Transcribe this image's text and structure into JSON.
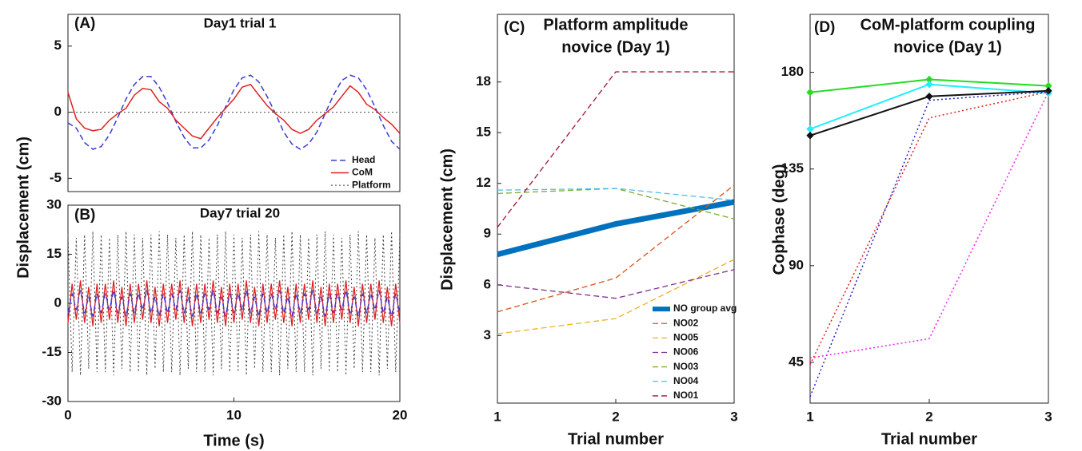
{
  "chart_data": [
    {
      "type": "line",
      "panel_label": "(A)",
      "title": [
        "Day1 trial 1"
      ],
      "ylabel": "Displacement (cm)",
      "x": [
        0,
        0.5,
        1,
        1.5,
        2,
        2.5,
        3,
        3.5,
        4,
        4.5,
        5,
        5.5,
        6,
        6.5,
        7,
        7.5,
        8,
        8.5,
        9,
        9.5,
        10,
        10.5,
        11,
        11.5,
        12,
        12.5,
        13,
        13.5,
        14,
        14.5,
        15,
        15.5,
        16,
        16.5,
        17,
        17.5,
        18,
        18.5,
        19,
        19.5,
        20
      ],
      "xlim": [
        0,
        20
      ],
      "ylim": [
        -6,
        7.4
      ],
      "yticks": [
        -5,
        0,
        5
      ],
      "legend": "lower right",
      "series": [
        {
          "name": "Head",
          "color": "#3b3bd6",
          "dash": "dashed",
          "width": 1.5,
          "values": [
            -0.8,
            -1.2,
            -2.3,
            -2.8,
            -2.6,
            -1.7,
            -0.4,
            1.0,
            2.1,
            2.7,
            2.7,
            1.9,
            0.7,
            -0.7,
            -1.9,
            -2.7,
            -2.7,
            -2.1,
            -1.0,
            0.4,
            1.7,
            2.6,
            2.8,
            2.3,
            1.2,
            -0.1,
            -1.5,
            -2.4,
            -2.8,
            -2.4,
            -1.5,
            -0.1,
            1.3,
            2.4,
            2.8,
            2.6,
            1.7,
            0.4,
            -1.0,
            -2.2,
            -2.8
          ]
        },
        {
          "name": "CoM",
          "color": "#e02020",
          "dash": "solid",
          "width": 1.5,
          "values": [
            1.5,
            -0.5,
            -1.2,
            -1.4,
            -1.3,
            -0.6,
            -0.1,
            0.3,
            1.3,
            1.8,
            1.7,
            0.8,
            0.3,
            -0.6,
            -1.2,
            -1.8,
            -2.0,
            -1.2,
            -0.4,
            0.3,
            1.0,
            1.9,
            2.1,
            1.3,
            0.5,
            -0.1,
            -0.6,
            -1.3,
            -1.6,
            -1.3,
            -0.6,
            -0.1,
            0.4,
            1.2,
            2.0,
            1.5,
            0.6,
            0.2,
            -0.4,
            -0.9,
            -1.6
          ]
        },
        {
          "name": "Platform",
          "color": "#444444",
          "dash": "dotted",
          "width": 1,
          "values": [
            0,
            0,
            0,
            0,
            0,
            0,
            0,
            0,
            0,
            0,
            0,
            0,
            0,
            0,
            0,
            0,
            0,
            0,
            0,
            0,
            0,
            0,
            0,
            0,
            0,
            0,
            0,
            0,
            0,
            0,
            0,
            0,
            0,
            0,
            0,
            0,
            0,
            0,
            0,
            0,
            0
          ]
        }
      ]
    },
    {
      "type": "line",
      "panel_label": "(B)",
      "title": [
        "Day7 trial 20"
      ],
      "xlabel": "Time (s)",
      "x": [
        0,
        0.25,
        0.5,
        0.75,
        1,
        1.25,
        1.5,
        1.75,
        2,
        2.25,
        2.5,
        2.75,
        3,
        3.25,
        3.5,
        3.75,
        4,
        4.25,
        4.5,
        4.75,
        5,
        5.25,
        5.5,
        5.75,
        6,
        6.25,
        6.5,
        6.75,
        7,
        7.25,
        7.5,
        7.75,
        8,
        8.25,
        8.5,
        8.75,
        9,
        9.25,
        9.5,
        9.75,
        10,
        10.25,
        10.5,
        10.75,
        11,
        11.25,
        11.5,
        11.75,
        12,
        12.25,
        12.5,
        12.75,
        13,
        13.25,
        13.5,
        13.75,
        14,
        14.25,
        14.5,
        14.75,
        15,
        15.25,
        15.5,
        15.75,
        16,
        16.25,
        16.5,
        16.75,
        17,
        17.25,
        17.5,
        17.75,
        18,
        18.25,
        18.5,
        18.75,
        19,
        19.25,
        19.5,
        19.75,
        20
      ],
      "xlim": [
        0,
        20
      ],
      "xticks": [
        0,
        10,
        20
      ],
      "ylim": [
        -30,
        30
      ],
      "yticks": [
        -30,
        -15,
        0,
        15,
        30
      ],
      "series": [
        {
          "color": "#444444",
          "dash": "dotted",
          "width": 1,
          "values": [
            21,
            -21,
            20,
            -22,
            21,
            -20,
            22,
            -21,
            21,
            -21,
            20,
            -22,
            21,
            -20,
            22,
            -21,
            21,
            -21,
            20,
            -22,
            21,
            -20,
            22,
            -21,
            21,
            -21,
            20,
            -22,
            21,
            -20,
            22,
            -21,
            21,
            -21,
            20,
            -22,
            21,
            -20,
            22,
            -21,
            21,
            -21,
            20,
            -22,
            21,
            -20,
            22,
            -21,
            21,
            -21,
            20,
            -22,
            21,
            -20,
            22,
            -21,
            21,
            -21,
            20,
            -22,
            21,
            -20,
            22,
            -21,
            21,
            -21,
            20,
            -22,
            21,
            -20,
            22,
            -21,
            21,
            -21,
            20,
            -22,
            21,
            -20,
            22,
            -21,
            21
          ]
        },
        {
          "color": "#e02020",
          "dash": "solid",
          "width": 1.3,
          "values": [
            -6,
            6,
            -5,
            7,
            -6,
            5,
            -7,
            6,
            -6,
            6,
            -5,
            7,
            -6,
            5,
            -7,
            6,
            -6,
            6,
            -5,
            7,
            -6,
            5,
            -7,
            6,
            -6,
            6,
            -5,
            7,
            -6,
            5,
            -7,
            6,
            -6,
            6,
            -5,
            7,
            -6,
            5,
            -7,
            6,
            -6,
            6,
            -5,
            7,
            -6,
            5,
            -7,
            6,
            -6,
            6,
            -5,
            7,
            -6,
            5,
            -7,
            6,
            -6,
            6,
            -5,
            7,
            -6,
            5,
            -7,
            6,
            -6,
            6,
            -5,
            7,
            -6,
            5,
            -7,
            6,
            -6,
            6,
            -5,
            7,
            -6,
            5,
            -7,
            6,
            -6
          ]
        },
        {
          "color": "#3b3bd6",
          "dash": "dashed",
          "width": 1.3,
          "values": [
            -3,
            3,
            -2,
            4,
            -3,
            2,
            -4,
            3,
            -3,
            3,
            -2,
            4,
            -3,
            2,
            -4,
            3,
            -3,
            3,
            -2,
            4,
            -3,
            2,
            -4,
            3,
            -3,
            3,
            -2,
            4,
            -3,
            2,
            -4,
            3,
            -3,
            3,
            -2,
            4,
            -3,
            2,
            -4,
            3,
            -3,
            3,
            -2,
            4,
            -3,
            2,
            -4,
            3,
            -3,
            3,
            -2,
            4,
            -3,
            2,
            -4,
            3,
            -3,
            3,
            -2,
            4,
            -3,
            2,
            -4,
            3,
            -3,
            3,
            -2,
            4,
            -3,
            2,
            -4,
            3,
            -3,
            3,
            -2,
            4,
            -3,
            2,
            -4,
            3,
            -3
          ]
        }
      ]
    },
    {
      "type": "line",
      "panel_label": "(C)",
      "title": [
        "Platform amplitude",
        "novice (Day 1)"
      ],
      "ylabel": "Displacement (cm)",
      "xlabel": "Trial number",
      "x": [
        1,
        2,
        3
      ],
      "xlim": [
        1,
        3
      ],
      "xticks": [
        1,
        2,
        3
      ],
      "ylim": [
        -1,
        22
      ],
      "yticks": [
        3,
        6,
        9,
        12,
        15,
        18
      ],
      "legend": "lower right",
      "series": [
        {
          "name": "NO group avg",
          "color": "#0072bd",
          "dash": "solid",
          "width": 7,
          "values": [
            7.8,
            9.6,
            10.9
          ]
        },
        {
          "name": "NO02",
          "color": "#d95319",
          "dash": "dashed",
          "width": 1.3,
          "values": [
            4.4,
            6.4,
            11.9
          ]
        },
        {
          "name": "NO05",
          "color": "#edb120",
          "dash": "dashed",
          "width": 1.3,
          "values": [
            3.1,
            4.0,
            7.5
          ]
        },
        {
          "name": "NO06",
          "color": "#7e2f8e",
          "dash": "dashed",
          "width": 1.3,
          "values": [
            6.0,
            5.2,
            6.9
          ]
        },
        {
          "name": "NO03",
          "color": "#77ac30",
          "dash": "dashed",
          "width": 1.3,
          "values": [
            11.4,
            11.7,
            9.9
          ]
        },
        {
          "name": "NO04",
          "color": "#4dbeee",
          "dash": "dashed",
          "width": 1.3,
          "values": [
            11.6,
            11.7,
            11.0
          ]
        },
        {
          "name": "NO01",
          "color": "#a2142f",
          "dash": "dashed",
          "width": 1.3,
          "values": [
            9.4,
            18.6,
            18.6
          ]
        }
      ]
    },
    {
      "type": "line",
      "panel_label": "(D)",
      "title": [
        "CoM-platform coupling",
        "novice (Day 1)"
      ],
      "ylabel": "Cophase (deg)",
      "xlabel": "Trial number",
      "x": [
        1,
        2,
        3
      ],
      "xlim": [
        1,
        3
      ],
      "xticks": [
        1,
        2,
        3
      ],
      "ylim": [
        26,
        207
      ],
      "yticks": [
        45,
        90,
        135,
        180
      ],
      "series": [
        {
          "color": "#22dd22",
          "dash": "solid",
          "width": 2,
          "marker": "diamond",
          "values": [
            170.7,
            176.7,
            173.7
          ]
        },
        {
          "color": "#22eeff",
          "dash": "solid",
          "width": 2,
          "marker": "diamond",
          "values": [
            153.6,
            174.4,
            170.3
          ]
        },
        {
          "color": "#111111",
          "dash": "solid",
          "width": 2,
          "marker": "diamond",
          "values": [
            150.6,
            168.8,
            171.4
          ]
        },
        {
          "color": "#e02020",
          "dash": "dotted",
          "width": 1.5,
          "values": [
            44,
            158.8,
            171
          ]
        },
        {
          "color": "#2222cc",
          "dash": "dotted",
          "width": 1.5,
          "values": [
            29,
            167,
            171
          ]
        },
        {
          "color": "#ee22ee",
          "dash": "dotted",
          "width": 1.5,
          "values": [
            47,
            56,
            171
          ]
        }
      ]
    }
  ]
}
